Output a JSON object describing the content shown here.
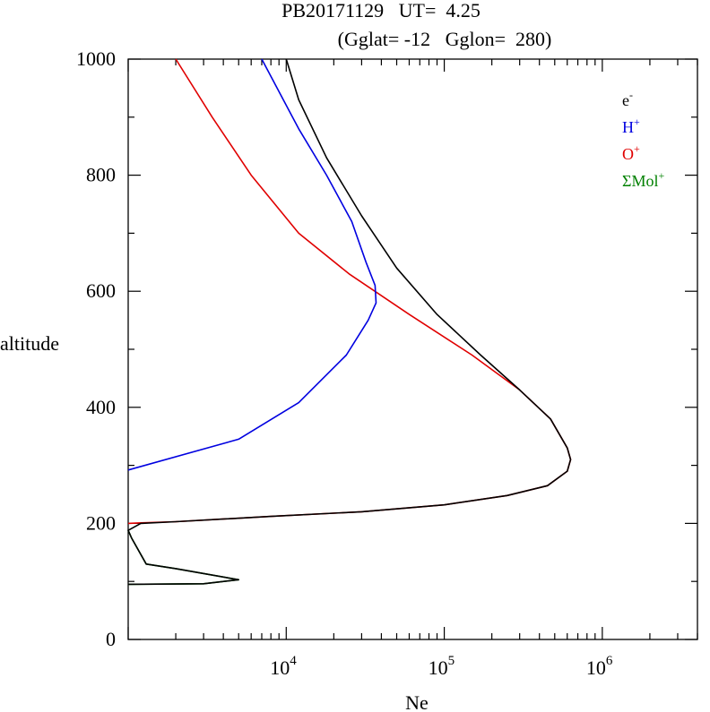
{
  "chart_data": {
    "type": "line",
    "title": "PB20171129   UT=  4.25",
    "subtitle": "(Gglat= -12   Gglon=  280)",
    "xlabel": "Ne",
    "ylabel": "altitude",
    "xscale": "log",
    "xlim": [
      1000,
      4000000
    ],
    "ylim": [
      0,
      1000
    ],
    "y_ticks": [
      0,
      200,
      400,
      600,
      800,
      1000
    ],
    "y_tick_labels": [
      "0",
      "200",
      "400",
      "600",
      "800",
      "1000"
    ],
    "x_ticks": [
      10000,
      100000,
      1000000
    ],
    "x_tick_labels": [
      {
        "base": "10",
        "exp": "4"
      },
      {
        "base": "10",
        "exp": "5"
      },
      {
        "base": "10",
        "exp": "6"
      }
    ],
    "legend_position": "top-right",
    "series": [
      {
        "name": "e-",
        "label": "e",
        "sup": "-",
        "color": "#000000",
        "points": [
          [
            1000,
            95
          ],
          [
            3000,
            96
          ],
          [
            5000,
            103
          ],
          [
            2000,
            122
          ],
          [
            1300,
            130
          ],
          [
            1050,
            175
          ],
          [
            1000,
            188
          ],
          [
            1200,
            200
          ],
          [
            2000,
            203
          ],
          [
            8000,
            212
          ],
          [
            30000,
            220
          ],
          [
            100000,
            232
          ],
          [
            250000,
            248
          ],
          [
            450000,
            265
          ],
          [
            600000,
            290
          ],
          [
            630000,
            310
          ],
          [
            600000,
            330
          ],
          [
            470000,
            380
          ],
          [
            300000,
            430
          ],
          [
            170000,
            490
          ],
          [
            90000,
            560
          ],
          [
            50000,
            640
          ],
          [
            30000,
            730
          ],
          [
            18000,
            830
          ],
          [
            12000,
            930
          ],
          [
            10000,
            1000
          ]
        ]
      },
      {
        "name": "H+",
        "label": "H",
        "sup": "+",
        "color": "#0000e0",
        "points": [
          [
            1000,
            292
          ],
          [
            5000,
            345
          ],
          [
            12000,
            408
          ],
          [
            24000,
            490
          ],
          [
            33000,
            550
          ],
          [
            37000,
            580
          ],
          [
            36500,
            610
          ],
          [
            32000,
            650
          ],
          [
            26000,
            720
          ],
          [
            18000,
            800
          ],
          [
            12000,
            880
          ],
          [
            7000,
            1000
          ]
        ]
      },
      {
        "name": "O+",
        "label": "O",
        "sup": "+",
        "color": "#e00000",
        "points": [
          [
            1000,
            200
          ],
          [
            1200,
            201
          ],
          [
            2000,
            203
          ],
          [
            8000,
            212
          ],
          [
            30000,
            220
          ],
          [
            100000,
            232
          ],
          [
            250000,
            248
          ],
          [
            450000,
            265
          ],
          [
            600000,
            290
          ],
          [
            630000,
            310
          ],
          [
            600000,
            330
          ],
          [
            470000,
            380
          ],
          [
            300000,
            430
          ],
          [
            150000,
            490
          ],
          [
            60000,
            560
          ],
          [
            25000,
            630
          ],
          [
            12000,
            700
          ],
          [
            6000,
            800
          ],
          [
            3400,
            900
          ],
          [
            2000,
            1000
          ]
        ]
      },
      {
        "name": "ΣMol+",
        "label": "ΣMol",
        "sup": "+",
        "color": "#008000",
        "points": [
          [
            1000,
            95
          ],
          [
            3000,
            96
          ],
          [
            5000,
            103
          ],
          [
            2000,
            122
          ],
          [
            1300,
            130
          ],
          [
            1050,
            175
          ],
          [
            1000,
            188
          ]
        ]
      }
    ]
  }
}
